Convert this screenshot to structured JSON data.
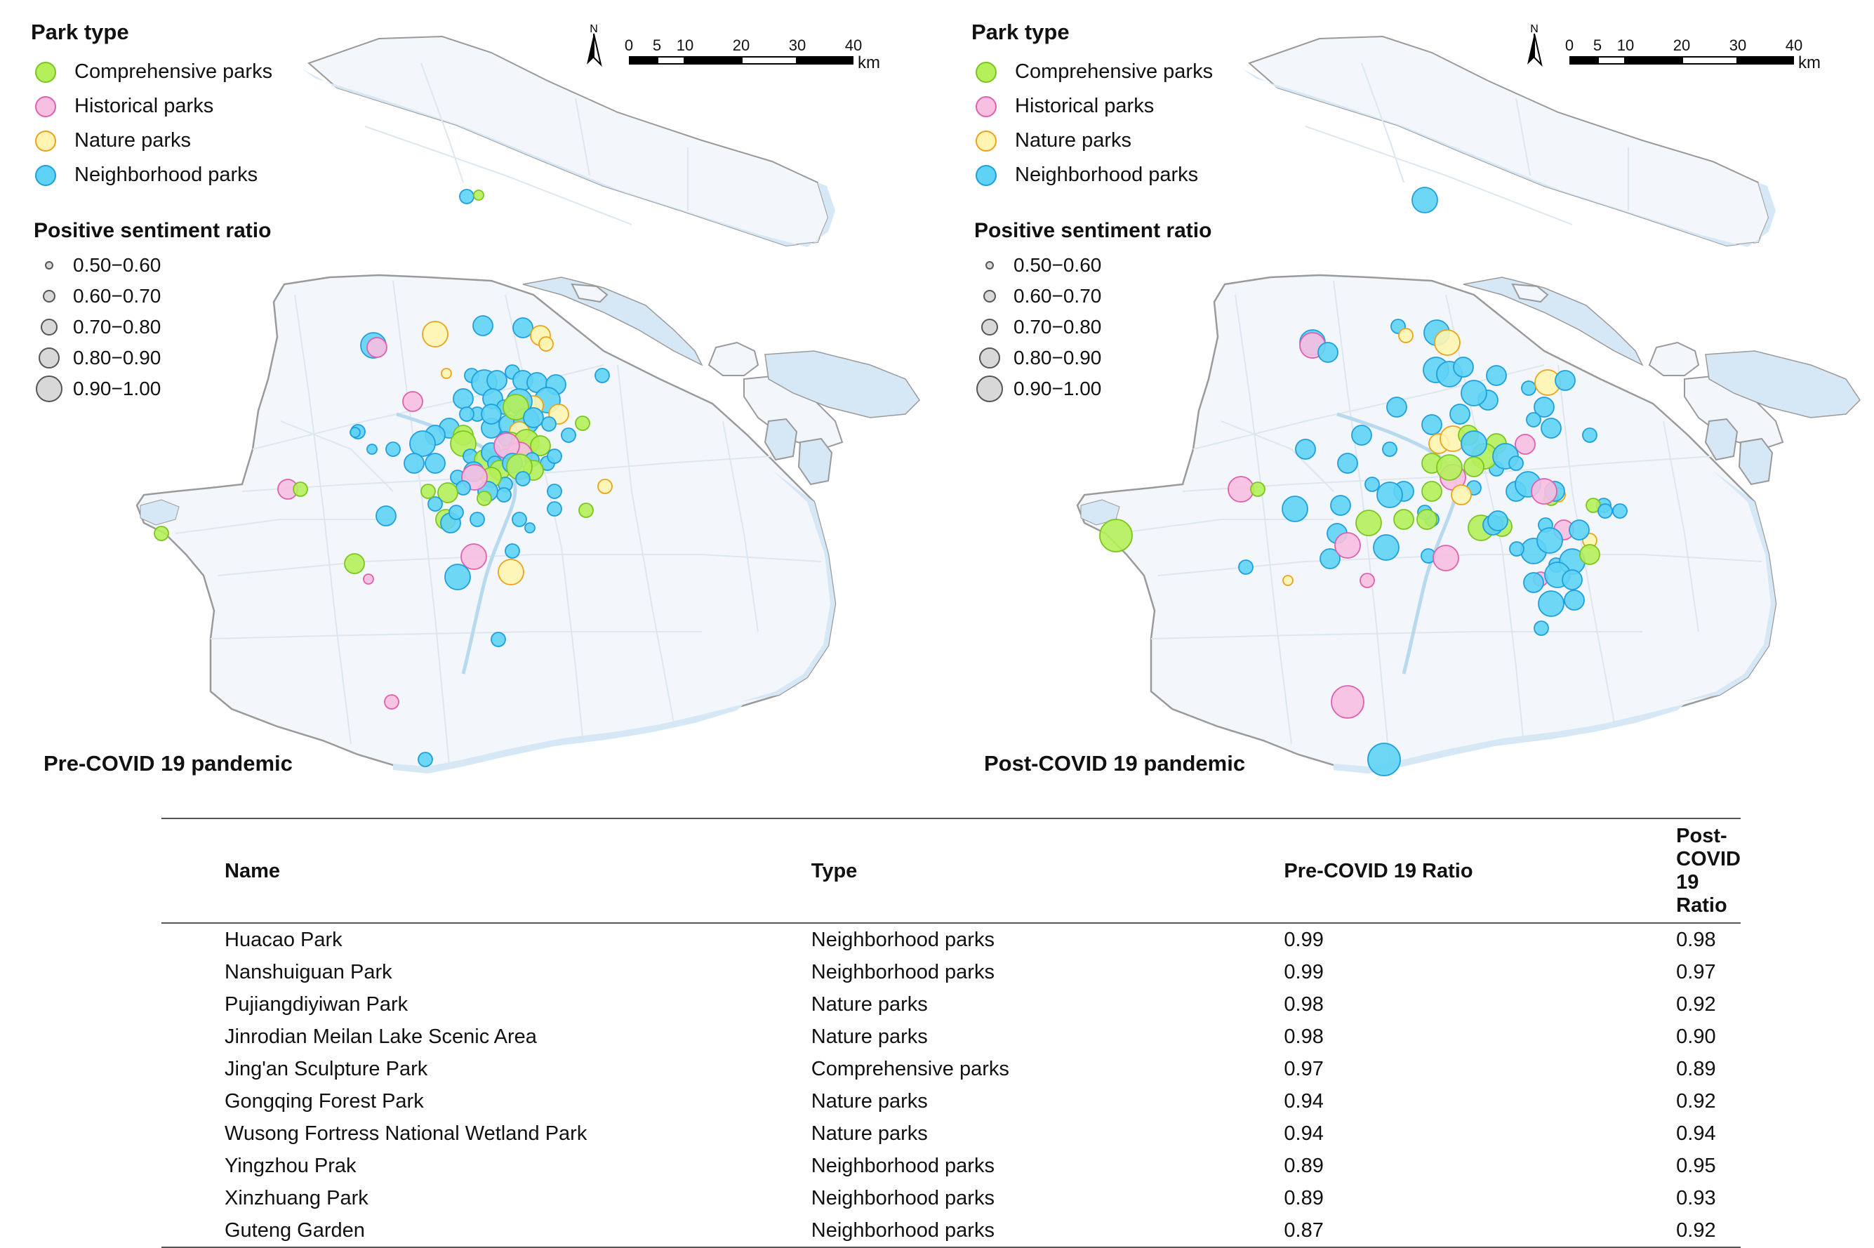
{
  "legend": {
    "park_type_title": "Park type",
    "park_types": [
      {
        "label": "Comprehensive parks",
        "fill": "#b5ef5a",
        "stroke": "#7cc520"
      },
      {
        "label": "Historical parks",
        "fill": "#f7bfe0",
        "stroke": "#e05fae"
      },
      {
        "label": "Nature parks",
        "fill": "#fff5b0",
        "stroke": "#eaa31b"
      },
      {
        "label": "Neighborhood parks",
        "fill": "#5fd3f5",
        "stroke": "#1f9fdc"
      }
    ],
    "ratio_title": "Positive sentiment ratio",
    "ratio_classes": [
      "0.50−0.60",
      "0.60−0.70",
      "0.70−0.80",
      "0.80−0.90",
      "0.90−1.00"
    ]
  },
  "scale": {
    "numbers": [
      "0",
      "5",
      "10",
      "20",
      "30",
      "40"
    ],
    "unit": "km",
    "north": "N"
  },
  "maps": [
    {
      "title": "Pre-COVID 19 pandemic"
    },
    {
      "title": "Post-COVID 19 pandemic"
    }
  ],
  "colors": {
    "water": "#d6e8f5",
    "land": "#f3f7fb",
    "boundary": "#9a9a9a"
  },
  "table": {
    "headers": [
      "Name",
      "Type",
      "Pre-COVID 19  Ratio",
      "Post-COVID 19 Ratio"
    ],
    "rows": [
      [
        "Huacao Park",
        "Neighborhood parks",
        "0.99",
        "0.98"
      ],
      [
        "Nanshuiguan Park",
        "Neighborhood parks",
        "0.99",
        "0.97"
      ],
      [
        "Pujiangdiyiwan Park",
        "Nature parks",
        "0.98",
        "0.92"
      ],
      [
        "Jinrodian Meilan Lake Scenic Area",
        "Nature parks",
        "0.98",
        "0.90"
      ],
      [
        "Jing'an Sculpture Park",
        "Comprehensive parks",
        "0.97",
        "0.89"
      ],
      [
        "Gongqing Forest Park",
        "Nature parks",
        "0.94",
        "0.92"
      ],
      [
        "Wusong Fortress National Wetland Park",
        "Nature parks",
        "0.94",
        "0.94"
      ],
      [
        "Yingzhou Prak",
        "Neighborhood parks",
        "0.89",
        "0.95"
      ],
      [
        "Xinzhuang Park",
        "Neighborhood parks",
        "0.89",
        "0.93"
      ],
      [
        "Guteng Garden",
        "Neighborhood parks",
        "0.87",
        "0.92"
      ]
    ]
  }
}
